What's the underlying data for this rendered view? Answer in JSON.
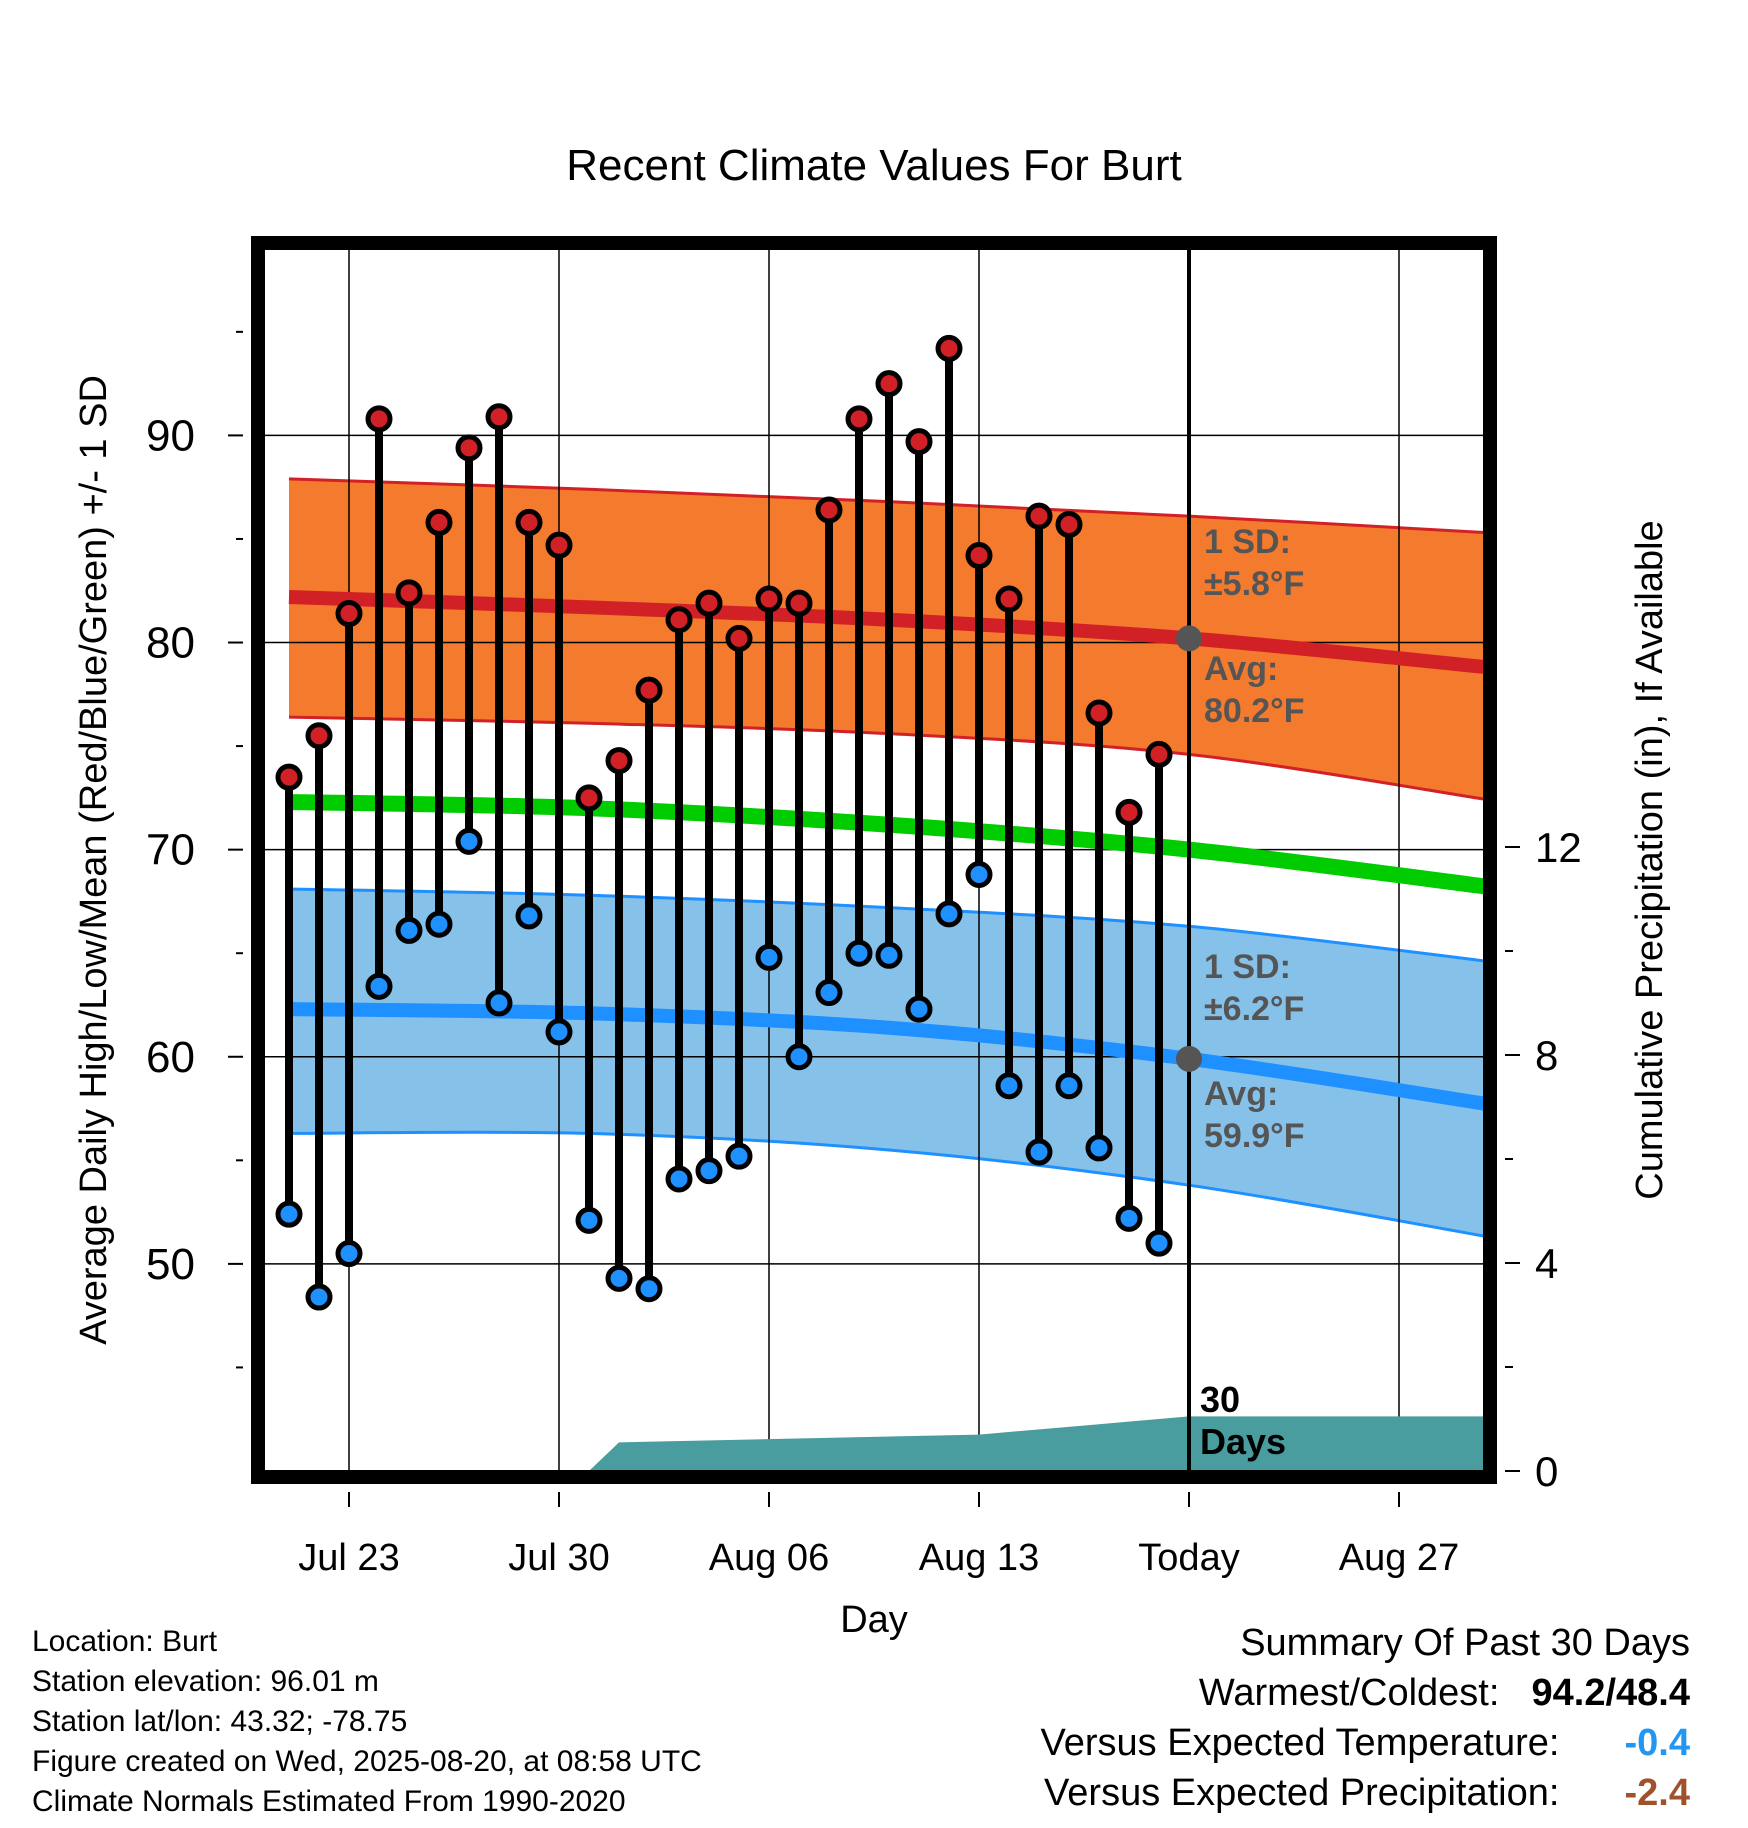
{
  "chart_data": {
    "type": "line",
    "title": "Recent Climate Values For Burt",
    "xlabel": "Day",
    "ylabel": "Average Daily High/Low/Mean (Red/Blue/Green) +/- 1 SD",
    "y2label": "Cumulative Precipitation (in), If Available",
    "x_tick_labels": [
      "Jul 23",
      "Jul 30",
      "Aug 06",
      "Aug 13",
      "Today",
      "Aug 27"
    ],
    "ylim": [
      40,
      99
    ],
    "y_ticks": [
      50,
      60,
      70,
      80,
      90
    ],
    "y2lim": [
      0,
      23.5
    ],
    "y2_ticks": [
      0,
      4,
      8,
      12
    ],
    "grid": true,
    "days": [
      "Jul 21",
      "Jul 22",
      "Jul 23",
      "Jul 24",
      "Jul 25",
      "Jul 26",
      "Jul 27",
      "Jul 28",
      "Jul 29",
      "Jul 30",
      "Jul 31",
      "Aug 01",
      "Aug 02",
      "Aug 03",
      "Aug 04",
      "Aug 05",
      "Aug 06",
      "Aug 07",
      "Aug 08",
      "Aug 09",
      "Aug 10",
      "Aug 11",
      "Aug 12",
      "Aug 13",
      "Aug 14",
      "Aug 15",
      "Aug 16",
      "Aug 17",
      "Aug 18",
      "Aug 19"
    ],
    "daily_high": [
      73.5,
      75.5,
      81.4,
      90.8,
      82.4,
      85.8,
      89.4,
      90.9,
      85.8,
      84.7,
      72.5,
      74.3,
      77.7,
      81.1,
      81.9,
      80.2,
      82.1,
      81.9,
      86.4,
      90.8,
      92.5,
      89.7,
      94.2,
      84.2,
      82.1,
      86.1,
      85.7,
      76.6,
      71.8,
      74.6
    ],
    "daily_low": [
      52.4,
      48.4,
      50.5,
      63.4,
      66.1,
      66.4,
      70.4,
      62.6,
      66.8,
      61.2,
      52.1,
      49.3,
      48.8,
      54.1,
      54.5,
      55.2,
      64.8,
      60.0,
      63.1,
      65.0,
      64.9,
      62.3,
      66.9,
      68.8,
      58.6,
      55.4,
      58.6,
      55.6,
      52.2,
      51.0
    ],
    "normals": {
      "x_day_offsets": [
        0,
        10,
        20,
        30,
        40
      ],
      "high_mean": [
        82.2,
        81.7,
        81.1,
        80.2,
        78.8
      ],
      "high_sd_upper": [
        87.9,
        87.4,
        86.8,
        86.1,
        85.3
      ],
      "high_sd_lower": [
        76.4,
        76.1,
        75.6,
        74.6,
        72.4
      ],
      "low_mean": [
        62.3,
        62.1,
        61.4,
        59.9,
        57.7
      ],
      "low_sd_upper": [
        68.1,
        67.8,
        67.2,
        66.3,
        64.6
      ],
      "low_sd_lower": [
        56.3,
        56.3,
        55.5,
        53.8,
        51.3
      ],
      "daily_mean": [
        72.3,
        72.0,
        71.2,
        70.0,
        68.2
      ]
    },
    "precip_cumulative": {
      "day_offsets": [
        0,
        10,
        11,
        23,
        27,
        29,
        30,
        40
      ],
      "values": [
        0,
        0,
        0.55,
        0.7,
        0.9,
        1.0,
        1.05,
        1.05
      ]
    },
    "annotations": {
      "high_sd": "1 SD:",
      "high_sd_value": "±5.8°F",
      "high_avg": "Avg:",
      "high_avg_value": "80.2°F",
      "low_sd": "1 SD:",
      "low_sd_value": "±6.2°F",
      "low_avg": "Avg:",
      "low_avg_value": "59.9°F",
      "period_number": "30",
      "period_unit": "Days"
    },
    "colors": {
      "high": "#d22027",
      "high_band": "#f47a2d",
      "low": "#1e90ff",
      "low_band": "#85c1e9",
      "mean": "#00cc00",
      "precip": "#4a9d9f",
      "annotation": "#555555"
    }
  },
  "footer": {
    "location": "Location: Burt",
    "elevation": "Station elevation: 96.01 m",
    "latlon": "Station lat/lon: 43.32; -78.75",
    "created": "Figure created on Wed, 2025-08-20, at 08:58 UTC",
    "normals": "Climate Normals Estimated From 1990-2020"
  },
  "summary": {
    "title": "Summary Of Past 30 Days",
    "warm_cold_label": "Warmest/Coldest:",
    "warm_cold_value": "94.2/48.4",
    "temp_label": "Versus Expected Temperature:",
    "temp_value": "-0.4",
    "temp_color": "#2196f3",
    "precip_label": "Versus Expected Precipitation:",
    "precip_value": "-2.4",
    "precip_color": "#a0522d"
  }
}
